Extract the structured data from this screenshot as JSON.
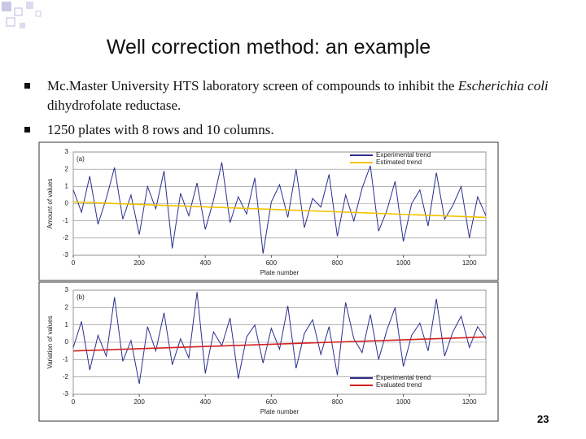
{
  "title": "Well correction method: an example",
  "bullets": [
    {
      "before": "Mc.Master University HTS laboratory screen of compounds to inhibit the",
      "italic": "Escherichia coli",
      "after": "dihydrofolate reductase."
    },
    {
      "before": "1250 plates with 8 rows and 10 columns."
    }
  ],
  "charts": [
    {
      "type": "line",
      "panel": "(a)",
      "x_label": "Plate number",
      "y_label": "Amount of values",
      "xlim": [
        0,
        1250
      ],
      "ylim": [
        -3,
        3
      ],
      "xticks": [
        0,
        200,
        400,
        600,
        800,
        1000,
        1200
      ],
      "yticks": [
        3,
        2,
        1,
        0,
        -1,
        -2,
        -3
      ],
      "legend": "upper right",
      "x": [
        0,
        25,
        50,
        75,
        100,
        125,
        150,
        175,
        200,
        225,
        250,
        275,
        300,
        325,
        350,
        375,
        400,
        425,
        450,
        475,
        500,
        525,
        550,
        575,
        600,
        625,
        650,
        675,
        700,
        725,
        750,
        775,
        800,
        825,
        850,
        875,
        900,
        925,
        950,
        975,
        1000,
        1025,
        1050,
        1075,
        1100,
        1125,
        1150,
        1175,
        1200,
        1225,
        1250
      ],
      "series": [
        {
          "name": "Experimental trend",
          "color": "#2b2f8f",
          "values": [
            0.8,
            -0.5,
            1.6,
            -1.2,
            0.3,
            2.1,
            -0.9,
            0.5,
            -1.8,
            1.0,
            -0.3,
            1.9,
            -2.6,
            0.6,
            -0.7,
            1.2,
            -1.5,
            0.2,
            2.4,
            -1.1,
            0.4,
            -0.6,
            1.5,
            -2.9,
            0.1,
            1.1,
            -0.8,
            2.0,
            -1.4,
            0.3,
            -0.2,
            1.7,
            -1.9,
            0.5,
            -1.0,
            0.9,
            2.2,
            -1.6,
            -0.4,
            1.3,
            -2.2,
            0.0,
            0.8,
            -1.3,
            1.8,
            -0.9,
            -0.1,
            1.0,
            -2.0,
            0.4,
            -0.7
          ]
        },
        {
          "name": "Estimated trend",
          "color": "#f2c200",
          "x": [
            0,
            1250
          ],
          "values": [
            0.1,
            -0.8
          ]
        }
      ]
    },
    {
      "type": "line",
      "panel": "(b)",
      "x_label": "Plate number",
      "y_label": "Variation of values",
      "xlim": [
        0,
        1250
      ],
      "ylim": [
        -3,
        3
      ],
      "xticks": [
        0,
        200,
        400,
        600,
        800,
        1000,
        1200
      ],
      "yticks": [
        3,
        2,
        1,
        0,
        -1,
        -2,
        -3
      ],
      "legend": "lower right",
      "x": [
        0,
        25,
        50,
        75,
        100,
        125,
        150,
        175,
        200,
        225,
        250,
        275,
        300,
        325,
        350,
        375,
        400,
        425,
        450,
        475,
        500,
        525,
        550,
        575,
        600,
        625,
        650,
        675,
        700,
        725,
        750,
        775,
        800,
        825,
        850,
        875,
        900,
        925,
        950,
        975,
        1000,
        1025,
        1050,
        1075,
        1100,
        1125,
        1150,
        1175,
        1200,
        1225,
        1250
      ],
      "series": [
        {
          "name": "Experimental trend",
          "color": "#2b2f8f",
          "values": [
            -0.3,
            1.2,
            -1.6,
            0.4,
            -0.8,
            2.6,
            -1.1,
            0.1,
            -2.4,
            0.9,
            -0.5,
            1.7,
            -1.3,
            0.2,
            -0.9,
            2.9,
            -1.8,
            0.6,
            -0.2,
            1.4,
            -2.1,
            0.3,
            1.0,
            -1.2,
            0.8,
            -0.4,
            2.1,
            -1.5,
            0.5,
            1.3,
            -0.7,
            0.9,
            -1.9,
            2.3,
            0.2,
            -0.6,
            1.6,
            -1.0,
            0.7,
            2.0,
            -1.4,
            0.4,
            1.1,
            -0.5,
            2.5,
            -0.8,
            0.6,
            1.5,
            -0.3,
            0.9,
            0.2
          ]
        },
        {
          "name": "Evaluated trend",
          "color": "#d42020",
          "x": [
            0,
            1250
          ],
          "values": [
            -0.5,
            0.3
          ]
        }
      ]
    }
  ],
  "page_number": "23"
}
